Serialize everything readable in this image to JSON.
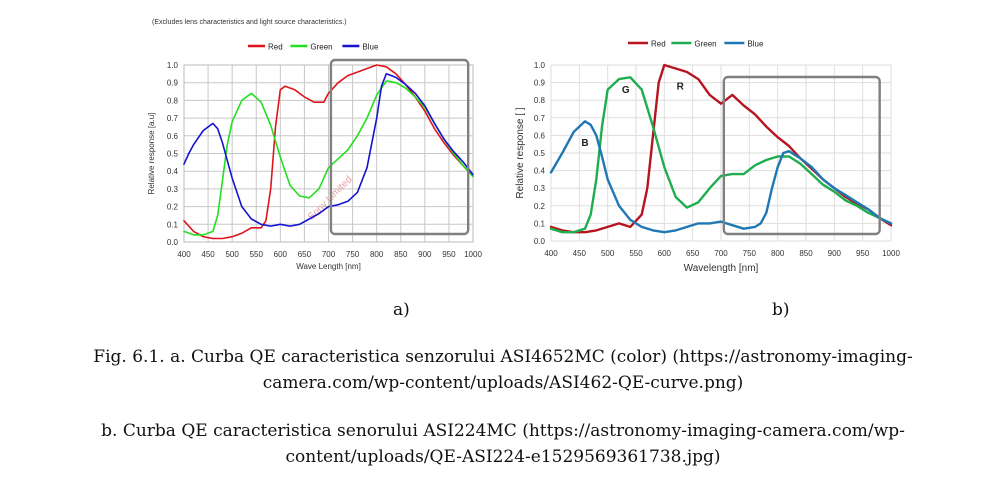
{
  "chart_data": [
    {
      "type": "line",
      "note": "(Excludes lens characteristics and light source characteristics.)",
      "xlabel": "Wave Length [nm]",
      "ylabel": "Relative response [a.u]",
      "xlim": [
        400,
        1000
      ],
      "ylim": [
        0,
        1.0
      ],
      "xticks": [
        "400",
        "450",
        "500",
        "550",
        "600",
        "650",
        "700",
        "750",
        "800",
        "850",
        "900",
        "950",
        "1000"
      ],
      "yticks": [
        "0.0",
        "0.1",
        "0.2",
        "0.3",
        "0.4",
        "0.5",
        "0.6",
        "0.7",
        "0.8",
        "0.9",
        "1.0"
      ],
      "grid": true,
      "legend": "top",
      "watermark": "Sony Limited",
      "highlight_box_x": [
        705,
        990
      ],
      "series": [
        {
          "name": "Red",
          "color": "#e0141e",
          "x": [
            400,
            420,
            440,
            460,
            480,
            500,
            520,
            540,
            560,
            570,
            580,
            590,
            600,
            610,
            630,
            650,
            670,
            690,
            700,
            720,
            740,
            760,
            780,
            800,
            820,
            840,
            860,
            880,
            900,
            920,
            940,
            960,
            980,
            1000
          ],
          "y": [
            0.12,
            0.06,
            0.03,
            0.02,
            0.02,
            0.03,
            0.05,
            0.08,
            0.08,
            0.12,
            0.3,
            0.65,
            0.86,
            0.88,
            0.86,
            0.82,
            0.79,
            0.79,
            0.84,
            0.9,
            0.94,
            0.96,
            0.98,
            1.0,
            0.99,
            0.95,
            0.89,
            0.82,
            0.74,
            0.64,
            0.56,
            0.49,
            0.43,
            0.37
          ]
        },
        {
          "name": "Green",
          "color": "#22e01e",
          "x": [
            400,
            420,
            440,
            460,
            470,
            480,
            490,
            500,
            520,
            540,
            560,
            580,
            600,
            620,
            640,
            660,
            680,
            700,
            720,
            740,
            760,
            780,
            800,
            820,
            840,
            860,
            880,
            900,
            920,
            940,
            960,
            980,
            1000
          ],
          "y": [
            0.06,
            0.04,
            0.04,
            0.06,
            0.15,
            0.35,
            0.55,
            0.68,
            0.8,
            0.84,
            0.79,
            0.66,
            0.48,
            0.32,
            0.26,
            0.25,
            0.3,
            0.42,
            0.47,
            0.52,
            0.6,
            0.7,
            0.83,
            0.91,
            0.9,
            0.87,
            0.82,
            0.76,
            0.67,
            0.58,
            0.5,
            0.43,
            0.37
          ]
        },
        {
          "name": "Blue",
          "color": "#1414d0",
          "x": [
            400,
            410,
            420,
            440,
            460,
            470,
            480,
            490,
            500,
            520,
            540,
            560,
            580,
            600,
            620,
            640,
            660,
            680,
            700,
            720,
            740,
            760,
            780,
            800,
            810,
            820,
            840,
            860,
            880,
            900,
            920,
            940,
            960,
            980,
            1000
          ],
          "y": [
            0.44,
            0.5,
            0.55,
            0.63,
            0.67,
            0.64,
            0.56,
            0.46,
            0.36,
            0.2,
            0.13,
            0.1,
            0.09,
            0.1,
            0.09,
            0.1,
            0.13,
            0.16,
            0.2,
            0.21,
            0.23,
            0.28,
            0.42,
            0.7,
            0.88,
            0.95,
            0.93,
            0.89,
            0.84,
            0.77,
            0.67,
            0.58,
            0.51,
            0.45,
            0.38
          ]
        }
      ]
    },
    {
      "type": "line",
      "xlabel": "Wavelength [nm]",
      "ylabel": "Relative response [ ]",
      "xlim": [
        400,
        1000
      ],
      "ylim": [
        0,
        1.0
      ],
      "xticks": [
        "400",
        "450",
        "500",
        "550",
        "600",
        "650",
        "700",
        "750",
        "800",
        "850",
        "900",
        "950",
        "1000"
      ],
      "yticks": [
        "0.0",
        "0.1",
        "0.2",
        "0.3",
        "0.4",
        "0.5",
        "0.6",
        "0.7",
        "0.8",
        "0.9",
        "1.0"
      ],
      "grid": true,
      "legend": "top",
      "highlight_box_x": [
        705,
        980
      ],
      "series": [
        {
          "name": "Red",
          "color": "#b7141e",
          "x": [
            400,
            420,
            440,
            460,
            480,
            500,
            520,
            540,
            560,
            570,
            580,
            590,
            600,
            620,
            640,
            660,
            680,
            700,
            720,
            740,
            760,
            780,
            800,
            820,
            840,
            860,
            880,
            900,
            920,
            940,
            960,
            980,
            1000
          ],
          "y": [
            0.08,
            0.06,
            0.05,
            0.05,
            0.06,
            0.08,
            0.1,
            0.08,
            0.15,
            0.3,
            0.6,
            0.9,
            1.0,
            0.98,
            0.96,
            0.92,
            0.83,
            0.78,
            0.83,
            0.77,
            0.72,
            0.65,
            0.59,
            0.54,
            0.47,
            0.41,
            0.35,
            0.3,
            0.25,
            0.21,
            0.18,
            0.13,
            0.09
          ]
        },
        {
          "name": "Green",
          "color": "#1fad4f",
          "x": [
            400,
            420,
            440,
            460,
            470,
            480,
            490,
            500,
            520,
            540,
            560,
            580,
            600,
            620,
            640,
            660,
            680,
            700,
            720,
            740,
            760,
            780,
            800,
            820,
            840,
            860,
            880,
            900,
            920,
            940,
            960,
            980,
            1000
          ],
          "y": [
            0.07,
            0.05,
            0.05,
            0.07,
            0.15,
            0.35,
            0.65,
            0.86,
            0.92,
            0.93,
            0.86,
            0.65,
            0.42,
            0.25,
            0.19,
            0.22,
            0.3,
            0.37,
            0.38,
            0.38,
            0.43,
            0.46,
            0.48,
            0.48,
            0.44,
            0.38,
            0.32,
            0.28,
            0.23,
            0.2,
            0.16,
            0.13,
            0.1
          ]
        },
        {
          "name": "Blue",
          "color": "#1f78b4",
          "x": [
            400,
            420,
            440,
            460,
            470,
            480,
            490,
            500,
            520,
            540,
            560,
            580,
            600,
            620,
            640,
            660,
            680,
            700,
            720,
            740,
            760,
            770,
            780,
            790,
            800,
            810,
            820,
            840,
            860,
            880,
            900,
            920,
            940,
            960,
            980,
            1000
          ],
          "y": [
            0.39,
            0.5,
            0.62,
            0.68,
            0.66,
            0.6,
            0.48,
            0.35,
            0.2,
            0.12,
            0.08,
            0.06,
            0.05,
            0.06,
            0.08,
            0.1,
            0.1,
            0.11,
            0.09,
            0.07,
            0.08,
            0.1,
            0.16,
            0.3,
            0.42,
            0.5,
            0.51,
            0.47,
            0.42,
            0.35,
            0.3,
            0.26,
            0.22,
            0.18,
            0.13,
            0.1
          ]
        }
      ],
      "annotations": [
        {
          "text": "B",
          "x": 460,
          "y": 0.54
        },
        {
          "text": "G",
          "x": 532,
          "y": 0.84
        },
        {
          "text": "R",
          "x": 628,
          "y": 0.86
        }
      ]
    }
  ],
  "labels": {
    "sub_a": "a)",
    "sub_b": "b)",
    "caption_a_line1": "Fig. 6.1. a. Curba QE caracteristica senzorului ASI4652MC (color) (https://astronomy-imaging-",
    "caption_a_line2": "camera.com/wp-content/uploads/ASI462-QE-curve.png)",
    "caption_b_line1": "b. Curba QE caracteristica senorului ASI224MC (https://astronomy-imaging-camera.com/wp-",
    "caption_b_line2": "content/uploads/QE-ASI224-e1529569361738.jpg)"
  }
}
